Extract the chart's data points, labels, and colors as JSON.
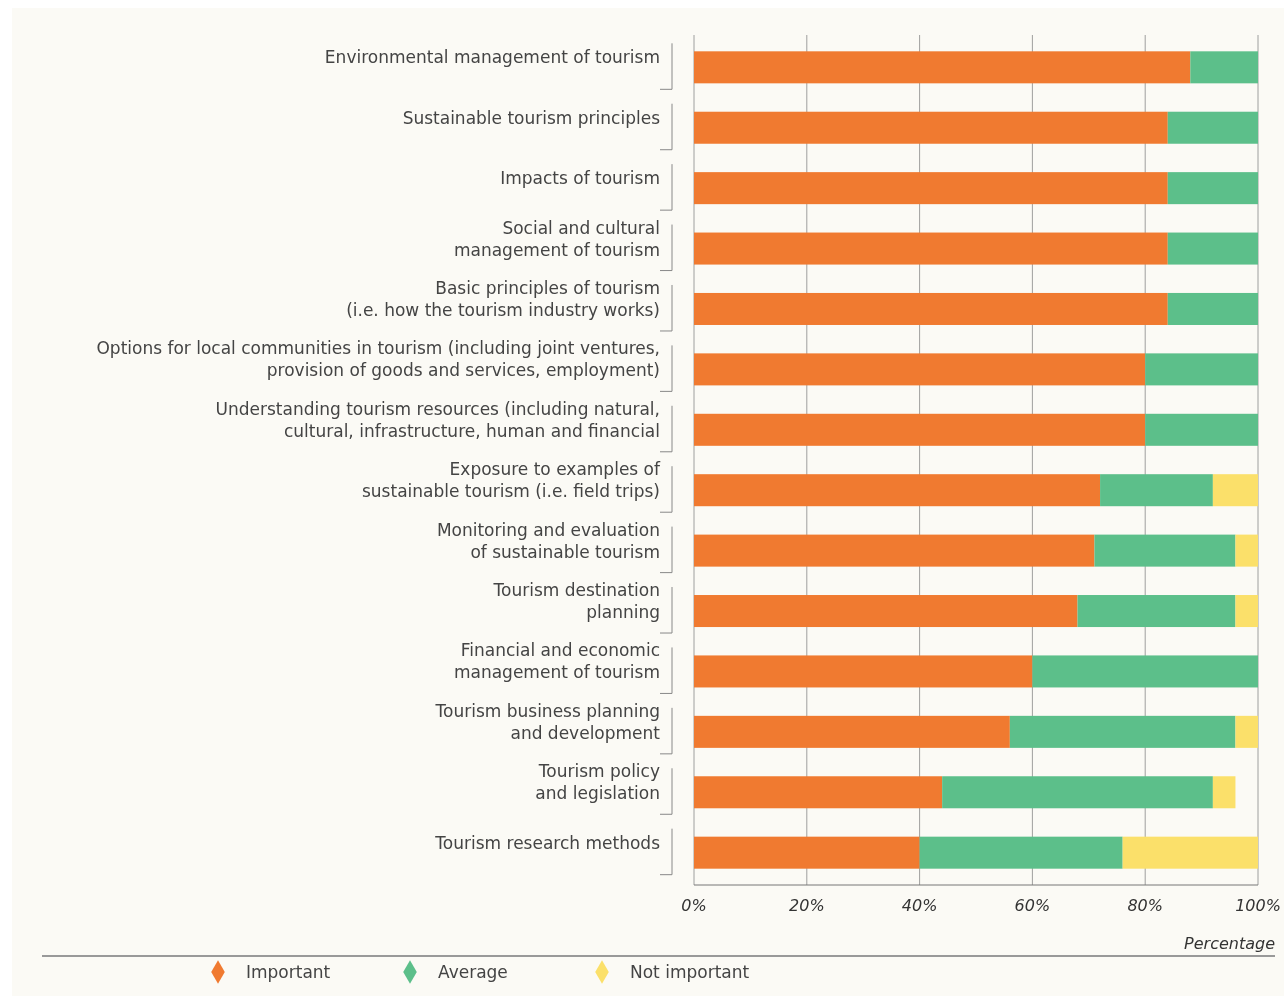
{
  "chart_data": {
    "type": "bar",
    "orientation": "horizontal",
    "stacked": true,
    "categories": [
      "Environmental management of tourism",
      "Sustainable tourism principles",
      "Impacts of tourism",
      "Social and cultural\nmanagement of tourism",
      "Basic principles of tourism\n(i.e. how the tourism industry works)",
      "Options for local communities in tourism (including joint ventures,\nprovision of goods and services, employment)",
      "Understanding tourism resources (including natural,\ncultural, infrastructure, human and financial",
      "Exposure to examples of\nsustainable tourism (i.e. field trips)",
      "Monitoring and evaluation\nof sustainable tourism",
      "Tourism destination\nplanning",
      "Financial and economic\nmanagement of tourism",
      "Tourism business planning\nand development",
      "Tourism policy\nand legislation",
      "Tourism research methods"
    ],
    "series": [
      {
        "name": "Important",
        "color": "#f07a30",
        "values": [
          88,
          84,
          84,
          84,
          84,
          80,
          80,
          72,
          71,
          68,
          60,
          56,
          44,
          40
        ]
      },
      {
        "name": "Average",
        "color": "#5cbf8a",
        "values": [
          12,
          16,
          16,
          16,
          16,
          20,
          20,
          20,
          25,
          28,
          40,
          40,
          48,
          36
        ]
      },
      {
        "name": "Not important",
        "color": "#fbe06a",
        "values": [
          0,
          0,
          0,
          0,
          0,
          0,
          0,
          8,
          4,
          4,
          0,
          4,
          4,
          24
        ]
      }
    ],
    "xlim": [
      0,
      100
    ],
    "xticks": [
      {
        "value": 0,
        "label": "0%"
      },
      {
        "value": 20,
        "label": "20%"
      },
      {
        "value": 40,
        "label": "40%"
      },
      {
        "value": 60,
        "label": "60%"
      },
      {
        "value": 80,
        "label": "80%"
      },
      {
        "value": 100,
        "label": "100%"
      }
    ],
    "xlabel": "Percentage",
    "grid": "x",
    "legend": "bottom"
  }
}
